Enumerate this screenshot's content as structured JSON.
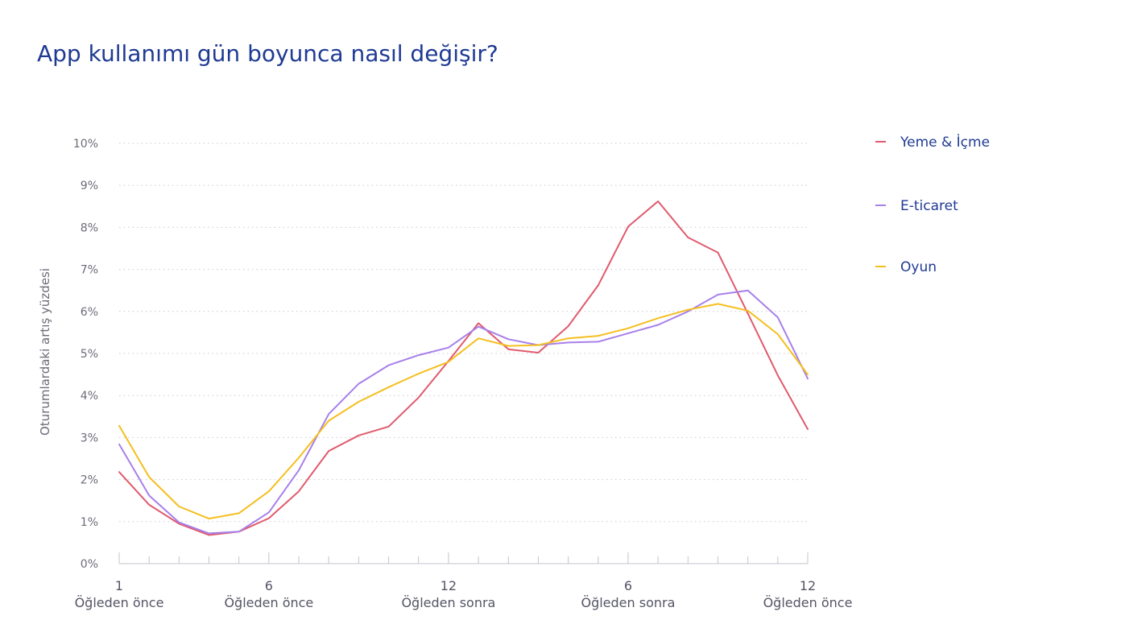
{
  "chart_data": {
    "type": "line",
    "title": "App kullanımı gün boyunca nasıl değişir?",
    "ylabel": "Oturumlardaki artış yüzdesi",
    "ylim": [
      0,
      10
    ],
    "y_ticks": [
      "0%",
      "1%",
      "2%",
      "3%",
      "4%",
      "5%",
      "6%",
      "7%",
      "8%",
      "9%",
      "10%"
    ],
    "x_tick_labels": [
      {
        "index": 0,
        "top": "1",
        "bottom": "Öğleden önce"
      },
      {
        "index": 5,
        "top": "6",
        "bottom": "Öğleden önce"
      },
      {
        "index": 11,
        "top": "12",
        "bottom": "Öğleden sonra"
      },
      {
        "index": 17,
        "top": "6",
        "bottom": "Öğleden sonra"
      },
      {
        "index": 23,
        "top": "12",
        "bottom": "Öğleden önce"
      }
    ],
    "hours": 24,
    "grid": true,
    "legend_position": "right",
    "series": [
      {
        "name": "Yeme & İçme",
        "color": "#e05a6d",
        "values": [
          2.18,
          1.4,
          0.95,
          0.68,
          0.76,
          1.08,
          1.72,
          2.68,
          3.05,
          3.26,
          3.95,
          4.82,
          5.72,
          5.1,
          5.02,
          5.65,
          6.62,
          8.02,
          8.62,
          7.76,
          7.4,
          5.95,
          4.48,
          3.2
        ]
      },
      {
        "name": "E-ticaret",
        "color": "#a780ea",
        "values": [
          2.84,
          1.62,
          0.98,
          0.72,
          0.76,
          1.22,
          2.22,
          3.56,
          4.28,
          4.72,
          4.96,
          5.14,
          5.64,
          5.34,
          5.2,
          5.26,
          5.28,
          5.48,
          5.68,
          6.0,
          6.4,
          6.5,
          5.86,
          4.4
        ]
      },
      {
        "name": "Oyun",
        "color": "#f5bf1f",
        "values": [
          3.28,
          2.06,
          1.36,
          1.07,
          1.2,
          1.72,
          2.52,
          3.4,
          3.85,
          4.2,
          4.52,
          4.8,
          5.36,
          5.18,
          5.2,
          5.36,
          5.42,
          5.6,
          5.84,
          6.04,
          6.18,
          6.02,
          5.46,
          4.5
        ]
      }
    ]
  }
}
